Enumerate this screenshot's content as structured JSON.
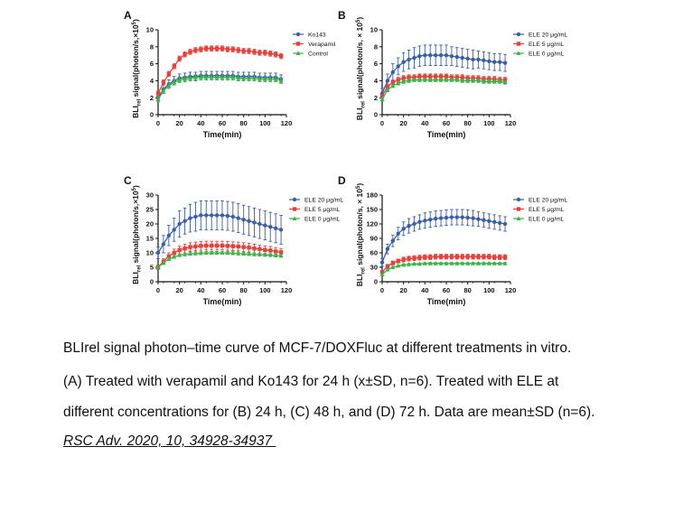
{
  "caption": {
    "line1": "BLIrel signal photon–time curve of MCF-7/DOXFluc at different treatments in vitro.",
    "line2": "(A) Treated with verapamil and Ko143 for 24 h (x±SD, n=6). Treated with ELE at",
    "line3": "different concentrations for (B) 24 h, (C) 48 h, and (D) 72 h. Data are mean±SD (n=6).",
    "citation": "RSC Adv. 2020, 10, 34928-34937"
  },
  "colors": {
    "blue": "#3a5fa8",
    "red": "#e8413c",
    "green": "#3db34a",
    "axis": "#111111"
  },
  "chart_data": [
    {
      "panel": "A",
      "type": "line",
      "xlabel": "Time(min)",
      "ylabel_base": "BLI",
      "ylabel_sub": "rel",
      "ylabel_rest": " signal(photon/s,×10",
      "ylabel_sup": "5",
      "ylabel_end": ")",
      "xlim": [
        0,
        120
      ],
      "ylim": [
        0,
        10
      ],
      "xticks": [
        "0",
        "20",
        "40",
        "60",
        "80",
        "100",
        "120"
      ],
      "yticks": [
        "0",
        "2",
        "4",
        "6",
        "8",
        "10"
      ],
      "x": [
        0,
        5,
        10,
        15,
        20,
        25,
        30,
        35,
        40,
        45,
        50,
        55,
        60,
        65,
        70,
        75,
        80,
        85,
        90,
        95,
        100,
        105,
        110,
        115
      ],
      "series": [
        {
          "name": "Ko143",
          "color": "#3a5fa8",
          "marker": "circle",
          "values": [
            2.0,
            3.0,
            3.6,
            4.0,
            4.3,
            4.4,
            4.5,
            4.5,
            4.6,
            4.6,
            4.6,
            4.6,
            4.6,
            4.6,
            4.6,
            4.5,
            4.5,
            4.5,
            4.5,
            4.4,
            4.4,
            4.4,
            4.4,
            4.2
          ],
          "error": [
            0.5,
            0.5,
            0.5,
            0.5,
            0.5,
            0.5,
            0.5,
            0.5,
            0.5,
            0.5,
            0.5,
            0.5,
            0.5,
            0.5,
            0.5,
            0.5,
            0.5,
            0.5,
            0.5,
            0.5,
            0.5,
            0.5,
            0.5,
            0.5
          ]
        },
        {
          "name": "Verapamil",
          "color": "#e8413c",
          "marker": "square",
          "values": [
            2.5,
            3.8,
            4.8,
            5.7,
            6.6,
            7.1,
            7.4,
            7.6,
            7.7,
            7.8,
            7.8,
            7.8,
            7.8,
            7.7,
            7.7,
            7.6,
            7.5,
            7.5,
            7.4,
            7.3,
            7.3,
            7.2,
            7.1,
            6.9
          ],
          "error": [
            0.3,
            0.3,
            0.3,
            0.3,
            0.3,
            0.3,
            0.3,
            0.3,
            0.3,
            0.3,
            0.3,
            0.3,
            0.3,
            0.3,
            0.3,
            0.3,
            0.3,
            0.3,
            0.3,
            0.3,
            0.3,
            0.3,
            0.3,
            0.3
          ]
        },
        {
          "name": "Control",
          "color": "#3db34a",
          "marker": "triangle",
          "values": [
            1.8,
            2.8,
            3.4,
            3.8,
            4.1,
            4.2,
            4.3,
            4.4,
            4.4,
            4.4,
            4.4,
            4.4,
            4.4,
            4.4,
            4.4,
            4.3,
            4.3,
            4.3,
            4.3,
            4.2,
            4.2,
            4.2,
            4.2,
            4.0
          ],
          "error": [
            0.3,
            0.3,
            0.3,
            0.3,
            0.3,
            0.3,
            0.3,
            0.3,
            0.3,
            0.3,
            0.3,
            0.3,
            0.3,
            0.3,
            0.3,
            0.3,
            0.3,
            0.3,
            0.3,
            0.3,
            0.3,
            0.3,
            0.3,
            0.3
          ]
        }
      ]
    },
    {
      "panel": "B",
      "type": "line",
      "xlabel": "Time(min)",
      "ylabel_base": "BLI",
      "ylabel_sub": "rel",
      "ylabel_rest": " signal(photon/s, × 10",
      "ylabel_sup": "5",
      "ylabel_end": ")",
      "xlim": [
        0,
        120
      ],
      "ylim": [
        0,
        10
      ],
      "xticks": [
        "0",
        "20",
        "40",
        "60",
        "80",
        "100",
        "120"
      ],
      "yticks": [
        "0",
        "2",
        "4",
        "6",
        "8",
        "10"
      ],
      "x": [
        0,
        5,
        10,
        15,
        20,
        25,
        30,
        35,
        40,
        45,
        50,
        55,
        60,
        65,
        70,
        75,
        80,
        85,
        90,
        95,
        100,
        105,
        110,
        115
      ],
      "series": [
        {
          "name": "ELE 20 μg/mL",
          "color": "#3a5fa8",
          "marker": "circle",
          "values": [
            2.5,
            4.0,
            5.0,
            5.7,
            6.2,
            6.5,
            6.7,
            6.9,
            7.0,
            7.0,
            7.0,
            7.0,
            7.0,
            6.9,
            6.8,
            6.7,
            6.6,
            6.5,
            6.5,
            6.4,
            6.3,
            6.2,
            6.2,
            6.1
          ],
          "error": [
            0.6,
            0.8,
            1.0,
            1.0,
            1.1,
            1.1,
            1.2,
            1.2,
            1.2,
            1.2,
            1.2,
            1.2,
            1.2,
            1.1,
            1.1,
            1.1,
            1.1,
            1.1,
            1.0,
            1.0,
            1.0,
            1.0,
            1.0,
            1.0
          ]
        },
        {
          "name": "ELE 5 μg/mL",
          "color": "#e8413c",
          "marker": "square",
          "values": [
            2.2,
            3.3,
            3.8,
            4.1,
            4.3,
            4.4,
            4.4,
            4.5,
            4.5,
            4.5,
            4.5,
            4.5,
            4.5,
            4.4,
            4.4,
            4.4,
            4.3,
            4.3,
            4.3,
            4.2,
            4.2,
            4.2,
            4.1,
            4.1
          ],
          "error": [
            0.2,
            0.3,
            0.3,
            0.3,
            0.3,
            0.3,
            0.3,
            0.3,
            0.3,
            0.3,
            0.3,
            0.3,
            0.3,
            0.3,
            0.3,
            0.3,
            0.3,
            0.3,
            0.3,
            0.3,
            0.3,
            0.3,
            0.3,
            0.3
          ]
        },
        {
          "name": "ELE 0 μg/mL",
          "color": "#3db34a",
          "marker": "triangle",
          "values": [
            1.8,
            2.9,
            3.4,
            3.7,
            3.9,
            4.0,
            4.1,
            4.1,
            4.1,
            4.1,
            4.1,
            4.1,
            4.1,
            4.1,
            4.1,
            4.0,
            4.0,
            4.0,
            4.0,
            3.9,
            3.9,
            3.9,
            3.9,
            3.8
          ],
          "error": [
            0.2,
            0.2,
            0.2,
            0.2,
            0.2,
            0.2,
            0.2,
            0.2,
            0.2,
            0.2,
            0.2,
            0.2,
            0.2,
            0.2,
            0.2,
            0.2,
            0.2,
            0.2,
            0.2,
            0.2,
            0.2,
            0.2,
            0.2,
            0.2
          ]
        }
      ]
    },
    {
      "panel": "C",
      "type": "line",
      "xlabel": "Time(min)",
      "ylabel_base": "BLI",
      "ylabel_sub": "rel",
      "ylabel_rest": " signal(photon/s,×10",
      "ylabel_sup": "5",
      "ylabel_end": ")",
      "xlim": [
        0,
        120
      ],
      "ylim": [
        0,
        30
      ],
      "xticks": [
        "0",
        "20",
        "40",
        "60",
        "80",
        "100",
        "120"
      ],
      "yticks": [
        "0",
        "5",
        "10",
        "15",
        "20",
        "25",
        "30"
      ],
      "x": [
        0,
        5,
        10,
        15,
        20,
        25,
        30,
        35,
        40,
        45,
        50,
        55,
        60,
        65,
        70,
        75,
        80,
        85,
        90,
        95,
        100,
        105,
        110,
        115
      ],
      "series": [
        {
          "name": "ELE 20 μg/mL",
          "color": "#3a5fa8",
          "marker": "circle",
          "values": [
            10.0,
            13.0,
            16.0,
            18.0,
            20.0,
            21.0,
            22.0,
            22.5,
            23.0,
            23.0,
            23.0,
            23.0,
            23.0,
            22.8,
            22.5,
            22.0,
            21.5,
            21.0,
            20.5,
            20.0,
            19.5,
            19.0,
            18.5,
            18.0
          ],
          "error": [
            2.0,
            3.0,
            3.5,
            4.0,
            4.5,
            4.5,
            4.8,
            5.0,
            5.0,
            5.0,
            5.0,
            5.0,
            5.0,
            5.0,
            5.0,
            5.0,
            5.0,
            5.0,
            5.0,
            5.0,
            5.0,
            5.0,
            5.0,
            5.0
          ]
        },
        {
          "name": "ELE 5 μg/mL",
          "color": "#e8413c",
          "marker": "square",
          "values": [
            5.0,
            7.0,
            8.8,
            10.0,
            11.0,
            11.5,
            12.0,
            12.2,
            12.4,
            12.5,
            12.5,
            12.5,
            12.5,
            12.4,
            12.3,
            12.2,
            12.0,
            11.8,
            11.5,
            11.3,
            11.0,
            10.8,
            10.5,
            10.2
          ],
          "error": [
            0.8,
            1.0,
            1.2,
            1.3,
            1.4,
            1.5,
            1.5,
            1.5,
            1.5,
            1.5,
            1.5,
            1.5,
            1.5,
            1.5,
            1.5,
            1.5,
            1.5,
            1.5,
            1.5,
            1.4,
            1.4,
            1.4,
            1.3,
            1.3
          ]
        },
        {
          "name": "ELE 0 μg/mL",
          "color": "#3db34a",
          "marker": "triangle",
          "values": [
            5.0,
            6.5,
            7.8,
            8.6,
            9.2,
            9.5,
            9.7,
            9.8,
            9.9,
            10.0,
            10.0,
            10.0,
            10.0,
            10.0,
            9.9,
            9.8,
            9.7,
            9.6,
            9.5,
            9.4,
            9.3,
            9.2,
            9.1,
            9.0
          ],
          "error": [
            0.5,
            0.5,
            0.5,
            0.5,
            0.5,
            0.5,
            0.5,
            0.5,
            0.5,
            0.5,
            0.5,
            0.5,
            0.5,
            0.5,
            0.5,
            0.5,
            0.5,
            0.5,
            0.5,
            0.5,
            0.5,
            0.5,
            0.5,
            0.5
          ]
        }
      ]
    },
    {
      "panel": "D",
      "type": "line",
      "xlabel": "Time(min)",
      "ylabel_base": "BLI",
      "ylabel_sub": "rel",
      "ylabel_rest": " signal(photon/s, × 10",
      "ylabel_sup": "5",
      "ylabel_end": ")",
      "xlim": [
        0,
        120
      ],
      "ylim": [
        0,
        180
      ],
      "xticks": [
        "0",
        "20",
        "40",
        "60",
        "80",
        "100",
        "120"
      ],
      "yticks": [
        "0",
        "30",
        "60",
        "90",
        "120",
        "150",
        "180"
      ],
      "x": [
        0,
        5,
        10,
        15,
        20,
        25,
        30,
        35,
        40,
        45,
        50,
        55,
        60,
        65,
        70,
        75,
        80,
        85,
        90,
        95,
        100,
        105,
        110,
        115
      ],
      "series": [
        {
          "name": "ELE 20 μg/mL",
          "color": "#3a5fa8",
          "marker": "circle",
          "values": [
            40,
            68,
            85,
            100,
            110,
            116,
            120,
            124,
            127,
            129,
            131,
            132,
            133,
            134,
            134,
            134,
            133,
            132,
            130,
            128,
            126,
            124,
            122,
            120
          ],
          "error": [
            8,
            10,
            12,
            13,
            14,
            15,
            15,
            15,
            16,
            16,
            16,
            16,
            16,
            16,
            16,
            16,
            16,
            16,
            15,
            15,
            15,
            15,
            15,
            15
          ]
        },
        {
          "name": "ELE 5 μg/mL",
          "color": "#e8413c",
          "marker": "square",
          "values": [
            20,
            32,
            39,
            43,
            46,
            48,
            49,
            50,
            51,
            51,
            52,
            52,
            52,
            52,
            52,
            52,
            52,
            52,
            52,
            52,
            52,
            51,
            51,
            51
          ],
          "error": [
            3,
            4,
            4,
            4,
            5,
            5,
            5,
            5,
            5,
            5,
            5,
            5,
            5,
            5,
            5,
            5,
            5,
            5,
            5,
            5,
            5,
            5,
            5,
            5
          ]
        },
        {
          "name": "ELE 0 μg/mL",
          "color": "#3db34a",
          "marker": "triangle",
          "values": [
            15,
            25,
            30,
            33,
            35,
            36,
            37,
            37,
            38,
            38,
            38,
            38,
            38,
            38,
            38,
            38,
            38,
            38,
            38,
            38,
            38,
            38,
            38,
            38
          ],
          "error": [
            2,
            2,
            2,
            2,
            2,
            2,
            2,
            2,
            2,
            2,
            2,
            2,
            2,
            2,
            2,
            2,
            2,
            2,
            2,
            2,
            2,
            2,
            2,
            2
          ]
        }
      ]
    }
  ]
}
